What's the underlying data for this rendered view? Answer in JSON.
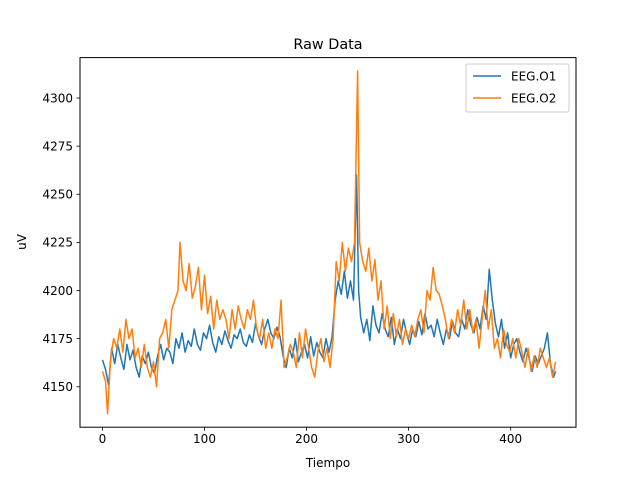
{
  "chart_data": {
    "type": "line",
    "title": "Raw Data",
    "xlabel": "Tiempo",
    "ylabel": "uV",
    "xlim": [
      -22,
      464
    ],
    "ylim": [
      4129,
      4321
    ],
    "xticks": [
      0,
      100,
      200,
      300,
      400
    ],
    "yticks": [
      4150,
      4175,
      4200,
      4225,
      4250,
      4275,
      4300
    ],
    "grid": false,
    "legend_position": "top-right",
    "series": [
      {
        "name": "EEG.O1",
        "color": "#1f77b4",
        "points": [
          [
            0,
            4164
          ],
          [
            3,
            4159
          ],
          [
            6,
            4151
          ],
          [
            9,
            4170
          ],
          [
            12,
            4162
          ],
          [
            15,
            4172
          ],
          [
            18,
            4165
          ],
          [
            21,
            4159
          ],
          [
            24,
            4172
          ],
          [
            27,
            4164
          ],
          [
            30,
            4169
          ],
          [
            33,
            4160
          ],
          [
            36,
            4155
          ],
          [
            39,
            4166
          ],
          [
            42,
            4162
          ],
          [
            45,
            4168
          ],
          [
            48,
            4160
          ],
          [
            51,
            4157
          ],
          [
            54,
            4166
          ],
          [
            57,
            4172
          ],
          [
            60,
            4164
          ],
          [
            63,
            4170
          ],
          [
            66,
            4168
          ],
          [
            69,
            4162
          ],
          [
            72,
            4175
          ],
          [
            75,
            4170
          ],
          [
            78,
            4178
          ],
          [
            81,
            4168
          ],
          [
            84,
            4174
          ],
          [
            87,
            4171
          ],
          [
            90,
            4180
          ],
          [
            93,
            4172
          ],
          [
            96,
            4169
          ],
          [
            99,
            4178
          ],
          [
            102,
            4175
          ],
          [
            105,
            4182
          ],
          [
            108,
            4173
          ],
          [
            111,
            4168
          ],
          [
            114,
            4176
          ],
          [
            117,
            4172
          ],
          [
            120,
            4179
          ],
          [
            123,
            4174
          ],
          [
            126,
            4170
          ],
          [
            129,
            4177
          ],
          [
            132,
            4175
          ],
          [
            135,
            4180
          ],
          [
            138,
            4173
          ],
          [
            141,
            4171
          ],
          [
            144,
            4177
          ],
          [
            147,
            4173
          ],
          [
            150,
            4183
          ],
          [
            153,
            4176
          ],
          [
            156,
            4172
          ],
          [
            159,
            4180
          ],
          [
            162,
            4185
          ],
          [
            165,
            4178
          ],
          [
            168,
            4175
          ],
          [
            171,
            4181
          ],
          [
            174,
            4176
          ],
          [
            177,
            4166
          ],
          [
            180,
            4160
          ],
          [
            183,
            4170
          ],
          [
            186,
            4165
          ],
          [
            189,
            4175
          ],
          [
            192,
            4163
          ],
          [
            195,
            4168
          ],
          [
            198,
            4172
          ],
          [
            201,
            4165
          ],
          [
            204,
            4176
          ],
          [
            207,
            4166
          ],
          [
            210,
            4173
          ],
          [
            213,
            4168
          ],
          [
            216,
            4165
          ],
          [
            219,
            4175
          ],
          [
            222,
            4168
          ],
          [
            225,
            4176
          ],
          [
            228,
            4195
          ],
          [
            231,
            4205
          ],
          [
            234,
            4198
          ],
          [
            237,
            4210
          ],
          [
            240,
            4196
          ],
          [
            243,
            4205
          ],
          [
            246,
            4195
          ],
          [
            249,
            4260
          ],
          [
            251,
            4200
          ],
          [
            253,
            4186
          ],
          [
            256,
            4178
          ],
          [
            259,
            4185
          ],
          [
            262,
            4174
          ],
          [
            265,
            4192
          ],
          [
            268,
            4182
          ],
          [
            271,
            4178
          ],
          [
            274,
            4188
          ],
          [
            277,
            4180
          ],
          [
            280,
            4176
          ],
          [
            283,
            4186
          ],
          [
            286,
            4172
          ],
          [
            289,
            4180
          ],
          [
            292,
            4175
          ],
          [
            295,
            4185
          ],
          [
            298,
            4178
          ],
          [
            301,
            4172
          ],
          [
            304,
            4180
          ],
          [
            307,
            4176
          ],
          [
            310,
            4184
          ],
          [
            313,
            4177
          ],
          [
            316,
            4188
          ],
          [
            319,
            4180
          ],
          [
            322,
            4182
          ],
          [
            325,
            4176
          ],
          [
            328,
            4185
          ],
          [
            331,
            4178
          ],
          [
            334,
            4172
          ],
          [
            337,
            4180
          ],
          [
            340,
            4175
          ],
          [
            343,
            4184
          ],
          [
            346,
            4178
          ],
          [
            349,
            4176
          ],
          [
            352,
            4185
          ],
          [
            355,
            4180
          ],
          [
            358,
            4190
          ],
          [
            361,
            4182
          ],
          [
            364,
            4178
          ],
          [
            367,
            4186
          ],
          [
            370,
            4180
          ],
          [
            373,
            4192
          ],
          [
            376,
            4185
          ],
          [
            379,
            4211
          ],
          [
            382,
            4195
          ],
          [
            385,
            4183
          ],
          [
            388,
            4176
          ],
          [
            391,
            4185
          ],
          [
            394,
            4170
          ],
          [
            397,
            4178
          ],
          [
            400,
            4165
          ],
          [
            403,
            4172
          ],
          [
            406,
            4175
          ],
          [
            409,
            4168
          ],
          [
            412,
            4163
          ],
          [
            415,
            4170
          ],
          [
            418,
            4165
          ],
          [
            421,
            4158
          ],
          [
            424,
            4166
          ],
          [
            427,
            4162
          ],
          [
            430,
            4166
          ],
          [
            433,
            4170
          ],
          [
            436,
            4178
          ],
          [
            439,
            4162
          ],
          [
            442,
            4155
          ],
          [
            444,
            4158
          ]
        ]
      },
      {
        "name": "EEG.O2",
        "color": "#ff7f0e",
        "points": [
          [
            0,
            4158
          ],
          [
            3,
            4153
          ],
          [
            5,
            4136
          ],
          [
            8,
            4165
          ],
          [
            11,
            4175
          ],
          [
            14,
            4170
          ],
          [
            17,
            4180
          ],
          [
            20,
            4168
          ],
          [
            23,
            4185
          ],
          [
            26,
            4175
          ],
          [
            29,
            4180
          ],
          [
            32,
            4165
          ],
          [
            35,
            4170
          ],
          [
            38,
            4160
          ],
          [
            41,
            4172
          ],
          [
            44,
            4160
          ],
          [
            47,
            4155
          ],
          [
            50,
            4163
          ],
          [
            53,
            4150
          ],
          [
            56,
            4175
          ],
          [
            59,
            4178
          ],
          [
            62,
            4185
          ],
          [
            65,
            4170
          ],
          [
            68,
            4190
          ],
          [
            71,
            4195
          ],
          [
            74,
            4200
          ],
          [
            76,
            4225
          ],
          [
            79,
            4205
          ],
          [
            82,
            4200
          ],
          [
            85,
            4214
          ],
          [
            88,
            4196
          ],
          [
            91,
            4202
          ],
          [
            94,
            4212
          ],
          [
            97,
            4190
          ],
          [
            100,
            4208
          ],
          [
            103,
            4188
          ],
          [
            106,
            4197
          ],
          [
            109,
            4180
          ],
          [
            112,
            4195
          ],
          [
            115,
            4185
          ],
          [
            118,
            4190
          ],
          [
            121,
            4185
          ],
          [
            124,
            4175
          ],
          [
            127,
            4190
          ],
          [
            130,
            4180
          ],
          [
            133,
            4192
          ],
          [
            136,
            4185
          ],
          [
            139,
            4180
          ],
          [
            142,
            4190
          ],
          [
            145,
            4185
          ],
          [
            148,
            4195
          ],
          [
            151,
            4180
          ],
          [
            154,
            4175
          ],
          [
            157,
            4185
          ],
          [
            160,
            4170
          ],
          [
            163,
            4178
          ],
          [
            166,
            4170
          ],
          [
            169,
            4180
          ],
          [
            172,
            4175
          ],
          [
            175,
            4195
          ],
          [
            178,
            4160
          ],
          [
            181,
            4165
          ],
          [
            184,
            4172
          ],
          [
            187,
            4168
          ],
          [
            190,
            4160
          ],
          [
            193,
            4178
          ],
          [
            196,
            4165
          ],
          [
            199,
            4180
          ],
          [
            202,
            4170
          ],
          [
            205,
            4160
          ],
          [
            208,
            4155
          ],
          [
            211,
            4168
          ],
          [
            214,
            4175
          ],
          [
            217,
            4163
          ],
          [
            220,
            4170
          ],
          [
            223,
            4160
          ],
          [
            226,
            4175
          ],
          [
            229,
            4215
          ],
          [
            232,
            4205
          ],
          [
            235,
            4225
          ],
          [
            238,
            4210
          ],
          [
            241,
            4222
          ],
          [
            244,
            4215
          ],
          [
            247,
            4225
          ],
          [
            250,
            4314
          ],
          [
            252,
            4225
          ],
          [
            255,
            4215
          ],
          [
            258,
            4210
          ],
          [
            261,
            4222
          ],
          [
            264,
            4205
          ],
          [
            267,
            4216
          ],
          [
            270,
            4195
          ],
          [
            273,
            4205
          ],
          [
            276,
            4180
          ],
          [
            279,
            4192
          ],
          [
            282,
            4175
          ],
          [
            285,
            4188
          ],
          [
            288,
            4176
          ],
          [
            291,
            4185
          ],
          [
            294,
            4172
          ],
          [
            297,
            4180
          ],
          [
            300,
            4175
          ],
          [
            303,
            4182
          ],
          [
            306,
            4176
          ],
          [
            309,
            4185
          ],
          [
            312,
            4190
          ],
          [
            315,
            4178
          ],
          [
            318,
            4200
          ],
          [
            321,
            4195
          ],
          [
            324,
            4212
          ],
          [
            327,
            4200
          ],
          [
            330,
            4198
          ],
          [
            333,
            4192
          ],
          [
            336,
            4185
          ],
          [
            339,
            4175
          ],
          [
            342,
            4185
          ],
          [
            345,
            4178
          ],
          [
            348,
            4190
          ],
          [
            351,
            4182
          ],
          [
            354,
            4195
          ],
          [
            357,
            4180
          ],
          [
            360,
            4190
          ],
          [
            363,
            4178
          ],
          [
            366,
            4185
          ],
          [
            369,
            4170
          ],
          [
            372,
            4185
          ],
          [
            375,
            4200
          ],
          [
            378,
            4180
          ],
          [
            381,
            4190
          ],
          [
            384,
            4170
          ],
          [
            387,
            4175
          ],
          [
            390,
            4165
          ],
          [
            393,
            4180
          ],
          [
            396,
            4172
          ],
          [
            399,
            4168
          ],
          [
            402,
            4175
          ],
          [
            405,
            4165
          ],
          [
            408,
            4175
          ],
          [
            411,
            4168
          ],
          [
            414,
            4160
          ],
          [
            417,
            4170
          ],
          [
            420,
            4158
          ],
          [
            423,
            4166
          ],
          [
            426,
            4160
          ],
          [
            429,
            4170
          ],
          [
            432,
            4165
          ],
          [
            435,
            4160
          ],
          [
            438,
            4165
          ],
          [
            441,
            4155
          ],
          [
            444,
            4163
          ]
        ]
      }
    ]
  }
}
